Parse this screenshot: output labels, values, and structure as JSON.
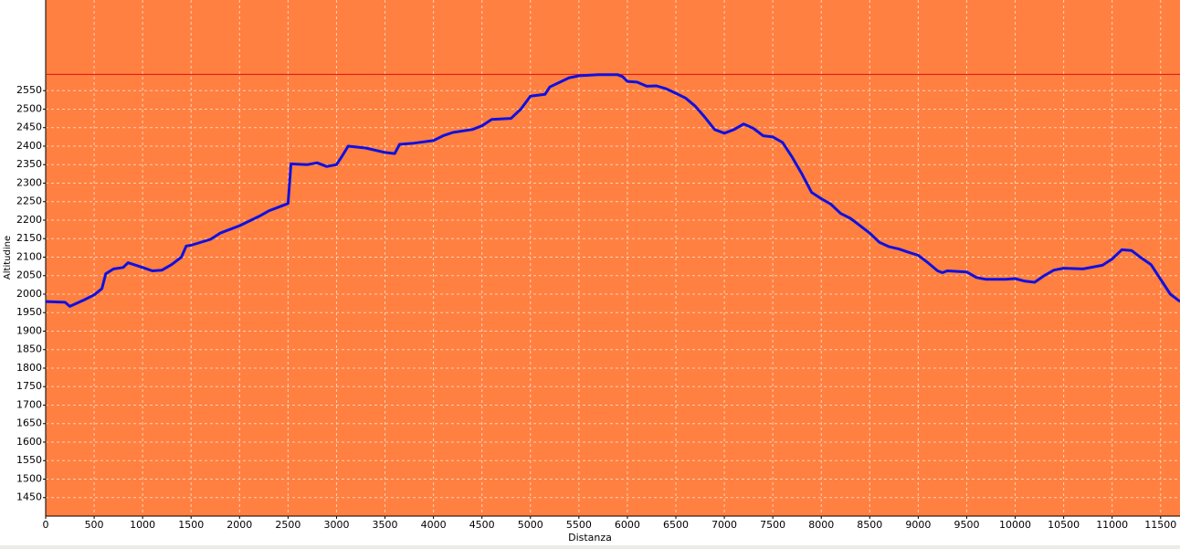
{
  "chart_data": {
    "type": "line",
    "xlabel": "Distanza",
    "ylabel": "Altitudine",
    "x": [
      0,
      200,
      250,
      400,
      500,
      580,
      620,
      700,
      800,
      850,
      1000,
      1100,
      1200,
      1300,
      1400,
      1450,
      1500,
      1700,
      1800,
      2000,
      2200,
      2300,
      2450,
      2500,
      2530,
      2700,
      2800,
      2900,
      3000,
      3050,
      3120,
      3300,
      3500,
      3600,
      3650,
      3800,
      4000,
      4100,
      4200,
      4400,
      4500,
      4600,
      4800,
      4900,
      5000,
      5150,
      5200,
      5400,
      5500,
      5700,
      5900,
      5950,
      6000,
      6100,
      6200,
      6300,
      6400,
      6500,
      6600,
      6700,
      6800,
      6900,
      7000,
      7100,
      7200,
      7300,
      7400,
      7500,
      7600,
      7700,
      7800,
      7900,
      8000,
      8100,
      8200,
      8300,
      8400,
      8500,
      8600,
      8700,
      8800,
      8900,
      9000,
      9100,
      9200,
      9250,
      9300,
      9500,
      9600,
      9700,
      9900,
      10000,
      10100,
      10200,
      10300,
      10400,
      10500,
      10700,
      10900,
      11000,
      11100,
      11200,
      11300,
      11400,
      11500,
      11600,
      11700
    ],
    "values": [
      1980,
      1978,
      1967,
      1985,
      1998,
      2015,
      2055,
      2068,
      2072,
      2085,
      2072,
      2063,
      2065,
      2080,
      2100,
      2130,
      2132,
      2148,
      2165,
      2185,
      2210,
      2225,
      2240,
      2245,
      2352,
      2350,
      2355,
      2345,
      2350,
      2370,
      2400,
      2395,
      2383,
      2380,
      2405,
      2408,
      2415,
      2428,
      2437,
      2445,
      2455,
      2472,
      2475,
      2500,
      2535,
      2540,
      2560,
      2585,
      2590,
      2593,
      2593,
      2588,
      2575,
      2573,
      2562,
      2563,
      2555,
      2543,
      2530,
      2508,
      2478,
      2445,
      2435,
      2445,
      2460,
      2448,
      2428,
      2425,
      2410,
      2370,
      2325,
      2275,
      2258,
      2243,
      2218,
      2205,
      2185,
      2165,
      2140,
      2128,
      2122,
      2113,
      2105,
      2085,
      2063,
      2058,
      2063,
      2060,
      2045,
      2040,
      2040,
      2042,
      2035,
      2032,
      2050,
      2065,
      2070,
      2068,
      2078,
      2095,
      2120,
      2118,
      2098,
      2080,
      2040,
      2000,
      1980
    ],
    "color": "#1010e0",
    "hline": {
      "value": 2594,
      "color": "#e01010"
    },
    "plot_background": "#ff8040",
    "xlim": [
      0,
      11700
    ],
    "xticks": [
      0,
      500,
      1000,
      1500,
      2000,
      2500,
      3000,
      3500,
      4000,
      4500,
      5000,
      5500,
      6000,
      6500,
      7000,
      7500,
      8000,
      8500,
      9000,
      9500,
      10000,
      10500,
      11000,
      11500
    ],
    "ylim": [
      1400,
      2795
    ],
    "yticks": [
      1450,
      1500,
      1550,
      1600,
      1650,
      1700,
      1750,
      1800,
      1850,
      1900,
      1950,
      2000,
      2050,
      2100,
      2150,
      2200,
      2250,
      2300,
      2350,
      2400,
      2450,
      2500,
      2550
    ],
    "grid": true
  }
}
